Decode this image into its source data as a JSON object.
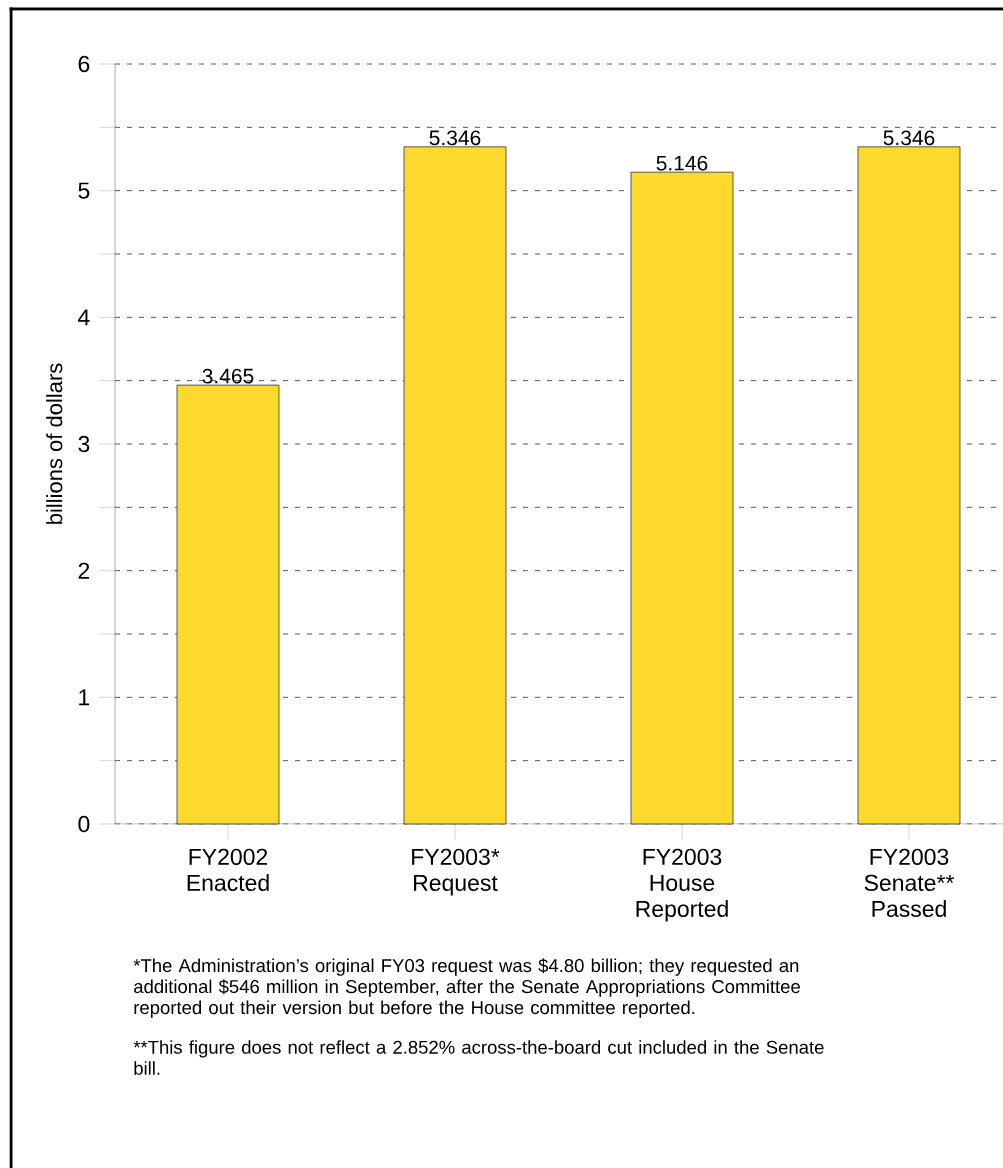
{
  "chart_data": {
    "type": "bar",
    "ylabel": "billions of dollars",
    "categories": [
      "FY2002 Enacted",
      "FY2003* Request",
      "FY2003 House Reported",
      "FY2003 Senate** Passed"
    ],
    "values": [
      3.465,
      5.346,
      5.146,
      5.346
    ],
    "color": "#fdd92e",
    "data_labels": true,
    "ylim": [
      0,
      6
    ],
    "yticks": [
      0,
      {
        "value": 0.5,
        "label": null
      },
      1,
      {
        "value": 1.5,
        "label": null
      },
      2,
      {
        "value": 2.5,
        "label": null
      },
      3,
      {
        "value": 3.5,
        "label": null
      },
      4,
      {
        "value": 4.5,
        "label": null
      },
      5,
      {
        "value": 5.5,
        "label": null
      },
      6
    ],
    "grid": "y",
    "annotations": [
      "*The Administration’s original FY03 request was $4.80 billion; they requested an additional $546 million in September, after the Senate Appropriations Committee reported out their version but before the House committee reported.",
      "**This figure does not reflect a 2.852% across-the-board cut included in the Senate bill."
    ]
  }
}
